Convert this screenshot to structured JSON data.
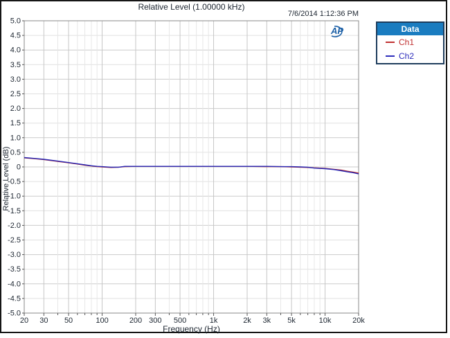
{
  "header": {
    "title": "Relative Level (1.00000 kHz)",
    "timestamp": "7/6/2014 1:12:36 PM"
  },
  "logo": {
    "text": "AP",
    "color": "#1b5fa6"
  },
  "legend": {
    "title": "Data",
    "header_bg": "#1a7cc0",
    "border_color": "#1d3c5c",
    "items": [
      {
        "label": "Ch1",
        "color": "#c03030"
      },
      {
        "label": "Ch2",
        "color": "#2d2dbb"
      }
    ]
  },
  "chart_data": {
    "type": "line",
    "title": "Relative Level (1.00000 kHz)",
    "xlabel": "Frequency (Hz)",
    "ylabel": "Relative Level (dB)",
    "x_scale": "log",
    "xlim": [
      20,
      20000
    ],
    "ylim": [
      -5,
      5
    ],
    "y_tick_step": 0.5,
    "grid": true,
    "legend_position": "outside-top-right",
    "y_tick_labels": [
      "5.0",
      "4.5",
      "4.0",
      "3.5",
      "3.0",
      "2.5",
      "2.0",
      "1.5",
      "1.0",
      "0.5",
      "0",
      "-0.5",
      "-1.0",
      "-1.5",
      "-2.0",
      "-2.5",
      "-3.0",
      "-3.5",
      "-4.0",
      "-4.5",
      "-5.0"
    ],
    "x_major_ticks": [
      {
        "f": 20,
        "label": "20"
      },
      {
        "f": 30,
        "label": "30"
      },
      {
        "f": 50,
        "label": "50"
      },
      {
        "f": 100,
        "label": "100"
      },
      {
        "f": 200,
        "label": "200"
      },
      {
        "f": 300,
        "label": "300"
      },
      {
        "f": 500,
        "label": "500"
      },
      {
        "f": 1000,
        "label": "1k"
      },
      {
        "f": 2000,
        "label": "2k"
      },
      {
        "f": 3000,
        "label": "3k"
      },
      {
        "f": 5000,
        "label": "5k"
      },
      {
        "f": 10000,
        "label": "10k"
      },
      {
        "f": 20000,
        "label": "20k"
      }
    ],
    "x_minor_ticks": [
      40,
      60,
      70,
      80,
      90,
      400,
      600,
      700,
      800,
      900,
      4000,
      6000,
      7000,
      8000,
      9000
    ],
    "series": [
      {
        "name": "Ch1",
        "color": "#b52a2a",
        "points": [
          [
            20,
            0.31
          ],
          [
            25,
            0.28
          ],
          [
            30,
            0.25
          ],
          [
            40,
            0.19
          ],
          [
            50,
            0.14
          ],
          [
            60,
            0.1
          ],
          [
            70,
            0.06
          ],
          [
            80,
            0.03
          ],
          [
            90,
            0.01
          ],
          [
            100,
            0.0
          ],
          [
            120,
            -0.02
          ],
          [
            140,
            -0.01
          ],
          [
            160,
            0.01
          ],
          [
            200,
            0.02
          ],
          [
            300,
            0.02
          ],
          [
            500,
            0.02
          ],
          [
            700,
            0.02
          ],
          [
            1000,
            0.02
          ],
          [
            1500,
            0.02
          ],
          [
            2000,
            0.02
          ],
          [
            3000,
            0.01
          ],
          [
            4000,
            0.01
          ],
          [
            5000,
            0.0
          ],
          [
            6000,
            -0.01
          ],
          [
            7000,
            -0.02
          ],
          [
            8000,
            -0.03
          ],
          [
            10000,
            -0.05
          ],
          [
            12000,
            -0.08
          ],
          [
            14000,
            -0.11
          ],
          [
            16000,
            -0.15
          ],
          [
            18000,
            -0.18
          ],
          [
            20000,
            -0.21
          ]
        ]
      },
      {
        "name": "Ch2",
        "color": "#2525b5",
        "points": [
          [
            20,
            0.32
          ],
          [
            25,
            0.29
          ],
          [
            30,
            0.26
          ],
          [
            40,
            0.2
          ],
          [
            50,
            0.15
          ],
          [
            60,
            0.11
          ],
          [
            70,
            0.07
          ],
          [
            80,
            0.04
          ],
          [
            90,
            0.02
          ],
          [
            100,
            0.01
          ],
          [
            120,
            -0.01
          ],
          [
            140,
            -0.01
          ],
          [
            160,
            0.02
          ],
          [
            200,
            0.02
          ],
          [
            300,
            0.02
          ],
          [
            500,
            0.02
          ],
          [
            700,
            0.02
          ],
          [
            1000,
            0.02
          ],
          [
            1500,
            0.02
          ],
          [
            2000,
            0.02
          ],
          [
            3000,
            0.02
          ],
          [
            4000,
            0.01
          ],
          [
            5000,
            0.01
          ],
          [
            6000,
            0.0
          ],
          [
            7000,
            -0.01
          ],
          [
            8000,
            -0.04
          ],
          [
            10000,
            -0.06
          ],
          [
            12000,
            -0.09
          ],
          [
            14000,
            -0.13
          ],
          [
            16000,
            -0.17
          ],
          [
            18000,
            -0.2
          ],
          [
            20000,
            -0.24
          ]
        ]
      }
    ]
  }
}
